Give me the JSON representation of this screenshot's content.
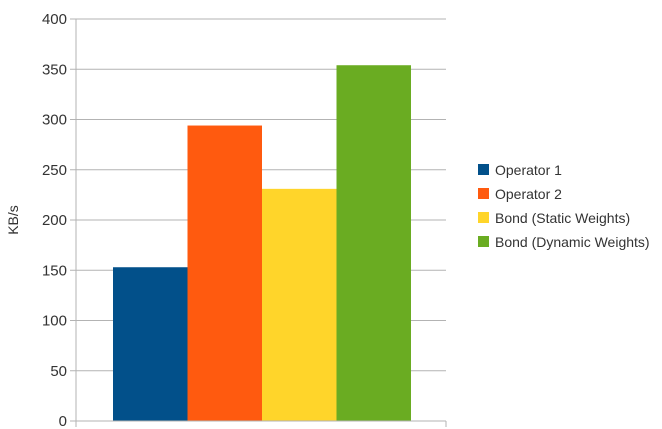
{
  "chart_data": {
    "type": "bar",
    "title": "",
    "xlabel": "",
    "ylabel": "KB/s",
    "ylim": [
      0,
      400
    ],
    "yticks": [
      0,
      50,
      100,
      150,
      200,
      250,
      300,
      350,
      400
    ],
    "grid": true,
    "legend_position": "right",
    "series": [
      {
        "name": "Operator 1",
        "value": 153,
        "color": "#02508a"
      },
      {
        "name": "Operator 2",
        "value": 294,
        "color": "#ff5a0f"
      },
      {
        "name": "Bond (Static Weights)",
        "value": 231,
        "color": "#ffd52a"
      },
      {
        "name": "Bond (Dynamic Weights)",
        "value": 354,
        "color": "#6aac22"
      }
    ]
  }
}
